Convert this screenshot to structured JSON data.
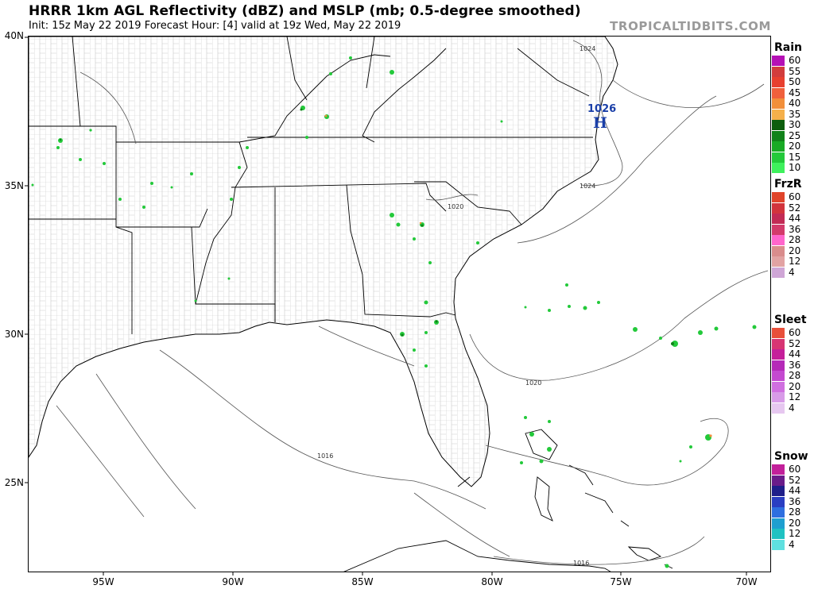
{
  "header": {
    "title": "HRRR 1km AGL Reflectivity (dBZ) and MSLP (mb; 0.5-degree smoothed)",
    "subtitle": "Init: 15z May 22 2019   Forecast Hour: [4]   valid at 19z Wed, May 22 2019",
    "brand": "TROPICALTIDBITS.COM"
  },
  "axes": {
    "lat_labels": [
      "40N",
      "35N",
      "30N",
      "25N"
    ],
    "lon_labels": [
      "95W",
      "90W",
      "85W",
      "80W",
      "75W",
      "70W"
    ]
  },
  "map": {
    "high_center": {
      "symbol": "H",
      "value": "1026",
      "color": "#1a3fa8"
    },
    "isobar_labels": [
      "1024",
      "1024",
      "1020",
      "1020",
      "1016",
      "1016"
    ]
  },
  "legend": [
    {
      "title": "Rain",
      "rows": [
        {
          "label": "60",
          "color": "#b510b5"
        },
        {
          "label": "55",
          "color": "#d23c3c"
        },
        {
          "label": "50",
          "color": "#e8402f"
        },
        {
          "label": "45",
          "color": "#f0603c"
        },
        {
          "label": "40",
          "color": "#f28f3a"
        },
        {
          "label": "35",
          "color": "#f5b04b"
        },
        {
          "label": "30",
          "color": "#0d5e0d"
        },
        {
          "label": "25",
          "color": "#11821a"
        },
        {
          "label": "20",
          "color": "#19aa25"
        },
        {
          "label": "15",
          "color": "#23c93a"
        },
        {
          "label": "10",
          "color": "#3ef05c"
        }
      ]
    },
    {
      "title": "FrzR",
      "rows": [
        {
          "label": "60",
          "color": "#e0442a"
        },
        {
          "label": "52",
          "color": "#d2343c"
        },
        {
          "label": "44",
          "color": "#c22b55"
        },
        {
          "label": "36",
          "color": "#d33b6b"
        },
        {
          "label": "28",
          "color": "#ff66cc"
        },
        {
          "label": "20",
          "color": "#d98c8c"
        },
        {
          "label": "12",
          "color": "#e2a3a3"
        },
        {
          "label": "4",
          "color": "#cfa6d6"
        }
      ]
    },
    {
      "title": "Sleet",
      "rows": [
        {
          "label": "60",
          "color": "#e8503a"
        },
        {
          "label": "52",
          "color": "#d73573"
        },
        {
          "label": "44",
          "color": "#c51f9a"
        },
        {
          "label": "36",
          "color": "#b52ab8"
        },
        {
          "label": "28",
          "color": "#c44ad0"
        },
        {
          "label": "20",
          "color": "#d06fe0"
        },
        {
          "label": "12",
          "color": "#d89be8"
        },
        {
          "label": "4",
          "color": "#e6c7f0"
        }
      ]
    },
    {
      "title": "Snow",
      "rows": [
        {
          "label": "60",
          "color": "#c2209a"
        },
        {
          "label": "52",
          "color": "#6a1c8a"
        },
        {
          "label": "44",
          "color": "#1f1f8a"
        },
        {
          "label": "36",
          "color": "#2a3ec2"
        },
        {
          "label": "28",
          "color": "#2f6fe0"
        },
        {
          "label": "20",
          "color": "#1f9fd0"
        },
        {
          "label": "12",
          "color": "#1fc2c2"
        },
        {
          "label": "4",
          "color": "#5fe0e0"
        }
      ]
    }
  ]
}
